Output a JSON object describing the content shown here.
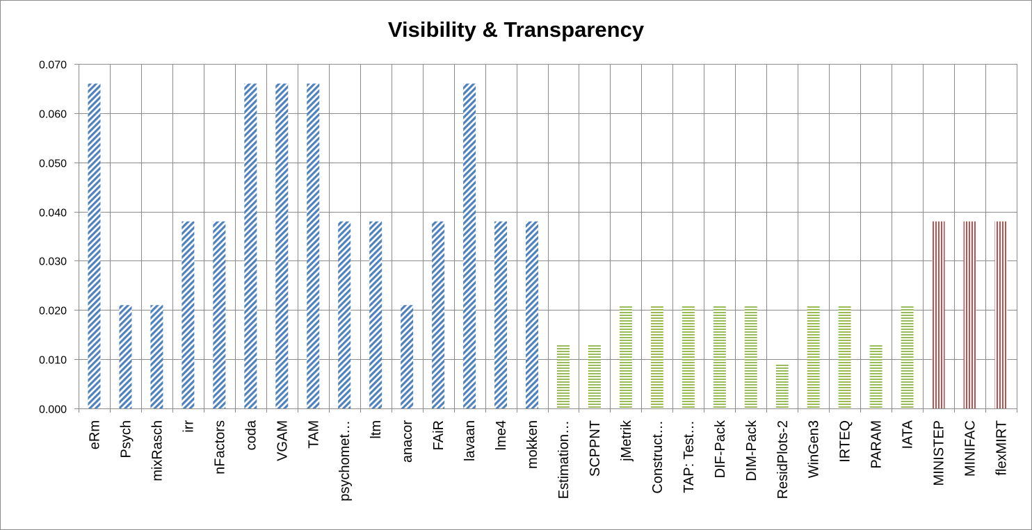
{
  "chart_data": {
    "type": "bar",
    "title": "Visibility & Transparency",
    "xlabel": "",
    "ylabel": "",
    "ylim": [
      0,
      0.07
    ],
    "yticks": [
      "0.000",
      "0.010",
      "0.020",
      "0.030",
      "0.040",
      "0.050",
      "0.060",
      "0.070"
    ],
    "grid": true,
    "legend": "none",
    "categories": [
      "eRm",
      "Psych",
      "mixRasch",
      "irr",
      "nFactors",
      "coda",
      "VGAM",
      "TAM",
      "psychomet…",
      "ltm",
      "anacor",
      "FAiR",
      "lavaan",
      "lme4",
      "mokken",
      "Estimation…",
      "SCPPNT",
      "jMetrik",
      "Construct…",
      "TAP: Test…",
      "DIF-Pack",
      "DIM-Pack",
      "ResidPlots-2",
      "WinGen3",
      "IRTEQ",
      "PARAM",
      "IATA",
      "MINISTEP",
      "MINIFAC",
      "flexMIRT"
    ],
    "values": [
      0.066,
      0.021,
      0.021,
      0.038,
      0.038,
      0.066,
      0.066,
      0.066,
      0.038,
      0.038,
      0.021,
      0.038,
      0.066,
      0.038,
      0.038,
      0.013,
      0.013,
      0.021,
      0.021,
      0.021,
      0.021,
      0.021,
      0.009,
      0.021,
      0.021,
      0.013,
      0.021,
      0.038,
      0.038,
      0.038
    ],
    "groups": [
      0,
      0,
      0,
      0,
      0,
      0,
      0,
      0,
      0,
      0,
      0,
      0,
      0,
      0,
      0,
      1,
      1,
      1,
      1,
      1,
      1,
      1,
      1,
      1,
      1,
      1,
      1,
      2,
      2,
      2
    ],
    "group_colors": [
      "#4f81bd",
      "#9bbb59",
      "#c0504d"
    ],
    "group_patterns": [
      "diagonal",
      "horizontal",
      "vertical"
    ]
  }
}
